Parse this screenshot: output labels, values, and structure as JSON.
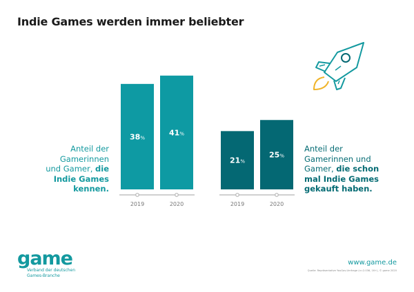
{
  "title": "Indie Games werden immer beliebter",
  "chart_data": [
    {
      "type": "bar",
      "categories": [
        "2019",
        "2020"
      ],
      "values": [
        38,
        41
      ],
      "value_labels": [
        "38",
        "41"
      ],
      "unit": "%",
      "color": "#0e9aa3",
      "ylim": [
        0,
        45
      ],
      "grid": false,
      "description_lines": [
        {
          "text": "Anteil der",
          "bold": false
        },
        {
          "text": "Gamerinnen",
          "bold": false
        },
        {
          "text": "und Gamer, ",
          "bold": false,
          "bold_tail": "die"
        },
        {
          "text": "Indie Games",
          "bold": true
        },
        {
          "text": "kennen.",
          "bold": true
        }
      ]
    },
    {
      "type": "bar",
      "categories": [
        "2019",
        "2020"
      ],
      "values": [
        21,
        25
      ],
      "value_labels": [
        "21",
        "25"
      ],
      "unit": "%",
      "color": "#046873",
      "ylim": [
        0,
        45
      ],
      "grid": false,
      "description_lines": [
        {
          "text": "Anteil der",
          "bold": false
        },
        {
          "text": "Gamerinnen und",
          "bold": false
        },
        {
          "text": "Gamer, ",
          "bold": false,
          "bold_tail": "die schon"
        },
        {
          "text": "mal Indie Games",
          "bold": true
        },
        {
          "text": "gekauft haben.",
          "bold": true
        }
      ]
    }
  ],
  "icons": {
    "decoration": "rocket-icon"
  },
  "colors": {
    "teal": "#13999f",
    "dark_teal": "#046873",
    "flame": "#f0b429",
    "axis": "#b5b5b5"
  },
  "footer": {
    "logo": "game",
    "logo_sub_1": "Verband der deutschen",
    "logo_sub_2": "Games-Branche",
    "url": "www.game.de",
    "source": "Quelle: Repräsentative YouGov-Umfrage (n=2.036, 16+), © game 2020"
  }
}
